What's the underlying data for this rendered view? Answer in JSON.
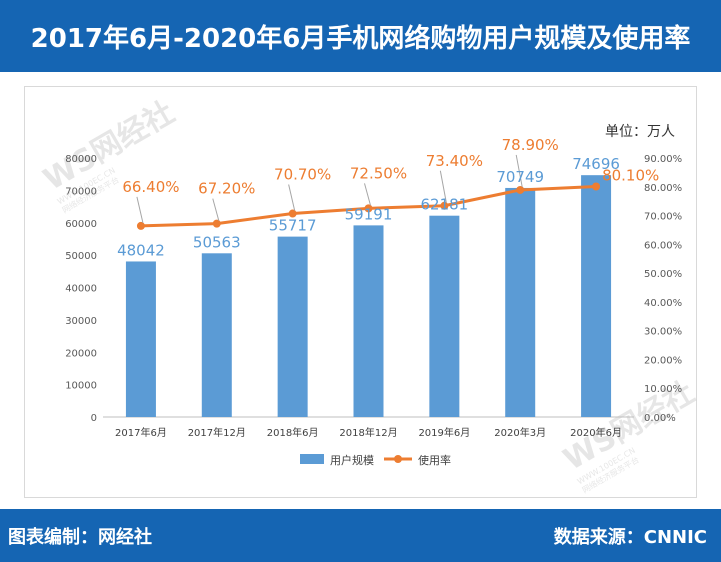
{
  "header": {
    "title": "2017年6月-2020年6月手机网络购物用户规模及使用率"
  },
  "footer": {
    "editor": "图表编制：网经社",
    "source": "数据来源：CNNIC"
  },
  "watermark": {
    "logo": "WS网经社",
    "domain": "WWW.100EC.CN",
    "tagline": "网络经济服务平台"
  },
  "colors": {
    "header_bg": "#1565b3",
    "bar": "#5b9bd5",
    "line": "#ed7d31",
    "bar_label": "#5b9bd5",
    "line_label": "#ed7d31"
  },
  "chart_data": {
    "type": "bar",
    "unit_label": "单位：万人",
    "categories": [
      "2017年6月",
      "2017年12月",
      "2018年6月",
      "2018年12月",
      "2019年6月",
      "2020年3月",
      "2020年6月"
    ],
    "series": [
      {
        "name": "用户规模",
        "type": "bar",
        "axis": "left",
        "values": [
          48042,
          50563,
          55717,
          59191,
          62181,
          70749,
          74696
        ],
        "labels": [
          "48042",
          "50563",
          "55717",
          "59191",
          "62181",
          "70749",
          "74696"
        ]
      },
      {
        "name": "使用率",
        "type": "line",
        "axis": "right",
        "values": [
          66.4,
          67.2,
          70.7,
          72.5,
          73.4,
          78.9,
          80.1
        ],
        "labels": [
          "66.40%",
          "67.20%",
          "70.70%",
          "72.50%",
          "73.40%",
          "78.90%",
          "80.10%"
        ]
      }
    ],
    "y_left": {
      "min": 0,
      "max": 80000,
      "ticks": [
        "0",
        "10000",
        "20000",
        "30000",
        "40000",
        "50000",
        "60000",
        "70000",
        "80000"
      ]
    },
    "y_right": {
      "min": 0,
      "max": 90,
      "ticks": [
        "0.00%",
        "10.00%",
        "20.00%",
        "30.00%",
        "40.00%",
        "50.00%",
        "60.00%",
        "70.00%",
        "80.00%",
        "90.00%"
      ]
    },
    "legend_position": "bottom",
    "grid": false
  }
}
